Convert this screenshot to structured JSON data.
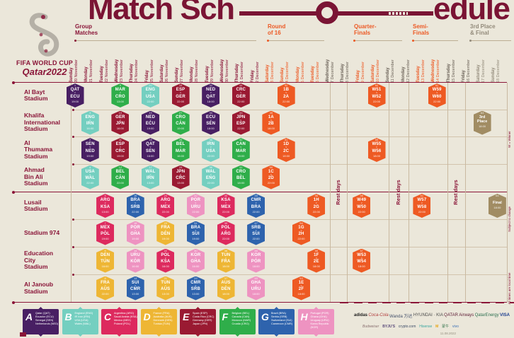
{
  "title": {
    "part1": "Match Sch",
    "part2": "edule"
  },
  "logo": {
    "line1": "FIFA WORLD CUP",
    "line2": "Qatar2022"
  },
  "colors": {
    "background": "#ebe7da",
    "maroon": "#8A1538",
    "title_maroon": "#7a1434",
    "orange": "#ec5a25",
    "taupe": "#a18c63",
    "rest_gray": "#6b6258",
    "final_gray": "#938b7b",
    "line_light": "#d2c3ac",
    "groups": {
      "A": "#481f63",
      "B": "#74cfc0",
      "C": "#dd2a5e",
      "D": "#eeb634",
      "E": "#9a1a32",
      "F": "#2fae4a",
      "G": "#2e63ad",
      "H": "#ee93c1",
      "K": "#ee5a23",
      "T": "#a18c63"
    }
  },
  "sections": [
    {
      "label": "Group\nMatches",
      "phase": "group"
    },
    {
      "label": "Round\nof 16",
      "phase": "knockout"
    },
    {
      "label": "Quarter-\nFinals",
      "phase": "knockout"
    },
    {
      "label": "Semi-\nFinals",
      "phase": "knockout"
    },
    {
      "label": "3rd Place\n& Final",
      "phase": "final"
    }
  ],
  "columns": [
    {
      "day": "Sunday",
      "date": "20 November",
      "phase": "group"
    },
    {
      "day": "Monday",
      "date": "21 November",
      "phase": "group"
    },
    {
      "day": "Tuesday",
      "date": "22 November",
      "phase": "group"
    },
    {
      "day": "Wednesday",
      "date": "23 November",
      "phase": "group"
    },
    {
      "day": "Thursday",
      "date": "24 November",
      "phase": "group"
    },
    {
      "day": "Friday",
      "date": "25 November",
      "phase": "group"
    },
    {
      "day": "Saturday",
      "date": "26 November",
      "phase": "group"
    },
    {
      "day": "Sunday",
      "date": "27 November",
      "phase": "group"
    },
    {
      "day": "Monday",
      "date": "28 November",
      "phase": "group"
    },
    {
      "day": "Tuesday",
      "date": "29 November",
      "phase": "group"
    },
    {
      "day": "Wednesday",
      "date": "30 November",
      "phase": "group"
    },
    {
      "day": "Thursday",
      "date": "1 December",
      "phase": "group"
    },
    {
      "day": "Friday",
      "date": "2 December",
      "phase": "group"
    },
    {
      "day": "Saturday",
      "date": "3 December",
      "phase": "knockout"
    },
    {
      "day": "Sunday",
      "date": "4 December",
      "phase": "knockout"
    },
    {
      "day": "Monday",
      "date": "5 December",
      "phase": "knockout"
    },
    {
      "day": "Tuesday",
      "date": "6 December",
      "phase": "knockout"
    },
    {
      "day": "Wednesday",
      "date": "7 December",
      "phase": "rest"
    },
    {
      "day": "Thursday",
      "date": "8 December",
      "phase": "rest"
    },
    {
      "day": "Friday",
      "date": "9 December",
      "phase": "knockout"
    },
    {
      "day": "Saturday",
      "date": "10 December",
      "phase": "knockout"
    },
    {
      "day": "Sunday",
      "date": "11 December",
      "phase": "rest"
    },
    {
      "day": "Monday",
      "date": "12 December",
      "phase": "rest"
    },
    {
      "day": "Tuesday",
      "date": "13 December",
      "phase": "knockout"
    },
    {
      "day": "Wednesday",
      "date": "14 December",
      "phase": "knockout"
    },
    {
      "day": "Thursday",
      "date": "15 December",
      "phase": "rest"
    },
    {
      "day": "Friday",
      "date": "16 December",
      "phase": "rest"
    },
    {
      "day": "Saturday",
      "date": "17 December",
      "phase": "final"
    },
    {
      "day": "Sunday",
      "date": "18 December",
      "phase": "final"
    }
  ],
  "rows": [
    {
      "stadium": "Al Bayt\nStadium",
      "matches": [
        {
          "c": 0,
          "g": "A",
          "n": "1",
          "a": "QAT",
          "b": "ECU",
          "t": "19:00"
        },
        {
          "c": 3,
          "g": "F",
          "n": "9",
          "a": "MAR",
          "b": "CRO",
          "t": "13:00"
        },
        {
          "c": 5,
          "g": "B",
          "n": "20",
          "a": "ENG",
          "b": "USA",
          "t": "22:00"
        },
        {
          "c": 7,
          "g": "E",
          "n": "28",
          "a": "ESP",
          "b": "GER",
          "t": "22:00"
        },
        {
          "c": 9,
          "g": "A",
          "n": "34",
          "a": "NED",
          "b": "QAT",
          "t": "18:00"
        },
        {
          "c": 11,
          "g": "E",
          "n": "44",
          "a": "CRC",
          "b": "GER",
          "t": "22:00"
        },
        {
          "c": 14,
          "g": "K",
          "n": "52",
          "a": "1B",
          "b": "2A",
          "t": "22:00"
        },
        {
          "c": 20,
          "g": "K",
          "n": "60",
          "a": "W51",
          "b": "W52",
          "t": "22:00"
        },
        {
          "c": 24,
          "g": "K",
          "n": "62",
          "a": "W59",
          "b": "W60",
          "t": "22:00"
        }
      ]
    },
    {
      "stadium": "Khalifa\nInternational\nStadium",
      "matches": [
        {
          "c": 1,
          "g": "B",
          "n": "3",
          "a": "ENG",
          "b": "IRN",
          "t": "16:00"
        },
        {
          "c": 3,
          "g": "E",
          "n": "10",
          "a": "GER",
          "b": "JPN",
          "t": "16:00"
        },
        {
          "c": 5,
          "g": "A",
          "n": "19",
          "a": "NED",
          "b": "ECU",
          "t": "19:00"
        },
        {
          "c": 7,
          "g": "F",
          "n": "27",
          "a": "CRO",
          "b": "CAN",
          "t": "19:00"
        },
        {
          "c": 9,
          "g": "A",
          "n": "33",
          "a": "ECU",
          "b": "SEN",
          "t": "18:00"
        },
        {
          "c": 11,
          "g": "E",
          "n": "43",
          "a": "JPN",
          "b": "ESP",
          "t": "22:00"
        },
        {
          "c": 13,
          "g": "K",
          "n": "49",
          "a": "1A",
          "b": "2B",
          "t": "18:00"
        },
        {
          "c": 27,
          "g": "T",
          "n": "63",
          "lines": [
            "3rd",
            "Place"
          ],
          "t": "18:00"
        }
      ]
    },
    {
      "stadium": "Al\nThumama\nStadium",
      "matches": [
        {
          "c": 1,
          "g": "A",
          "n": "2",
          "a": "SEN",
          "b": "NED",
          "t": "19:00"
        },
        {
          "c": 3,
          "g": "E",
          "n": "11",
          "a": "ESP",
          "b": "CRC",
          "t": "19:00"
        },
        {
          "c": 5,
          "g": "A",
          "n": "18",
          "a": "QAT",
          "b": "SEN",
          "t": "16:00"
        },
        {
          "c": 7,
          "g": "F",
          "n": "26",
          "a": "BEL",
          "b": "MAR",
          "t": "16:00"
        },
        {
          "c": 9,
          "g": "B",
          "n": "35",
          "a": "IRN",
          "b": "USA",
          "t": "22:00"
        },
        {
          "c": 11,
          "g": "F",
          "n": "42",
          "a": "CAN",
          "b": "MAR",
          "t": "18:00"
        },
        {
          "c": 14,
          "g": "K",
          "n": "51",
          "a": "1D",
          "b": "2C",
          "t": "18:00"
        },
        {
          "c": 20,
          "g": "K",
          "n": "59",
          "a": "W55",
          "b": "W56",
          "t": "18:00"
        }
      ]
    },
    {
      "stadium": "Ahmad\nBin Ali\nStadium",
      "matches": [
        {
          "c": 1,
          "g": "B",
          "n": "4",
          "a": "USA",
          "b": "WAL",
          "t": "22:00"
        },
        {
          "c": 3,
          "g": "F",
          "n": "12",
          "a": "BEL",
          "b": "CAN",
          "t": "22:00"
        },
        {
          "c": 5,
          "g": "B",
          "n": "17",
          "a": "WAL",
          "b": "IRN",
          "t": "13:00"
        },
        {
          "c": 7,
          "g": "E",
          "n": "25",
          "a": "JPN",
          "b": "CRC",
          "t": "13:00"
        },
        {
          "c": 9,
          "g": "B",
          "n": "36",
          "a": "WAL",
          "b": "ENG",
          "t": "22:00"
        },
        {
          "c": 11,
          "g": "F",
          "n": "41",
          "a": "CRO",
          "b": "BEL",
          "t": "18:00"
        },
        {
          "c": 13,
          "g": "K",
          "n": "50",
          "a": "1C",
          "b": "2D",
          "t": "22:00"
        }
      ]
    },
    {
      "stadium": "Lusail\nStadium",
      "matches": [
        {
          "c": 2,
          "g": "C",
          "n": "5",
          "a": "ARG",
          "b": "KSA",
          "t": "13:00"
        },
        {
          "c": 4,
          "g": "G",
          "n": "16",
          "a": "BRA",
          "b": "SRB",
          "t": "22:00"
        },
        {
          "c": 6,
          "g": "C",
          "n": "24",
          "a": "ARG",
          "b": "MEX",
          "t": "22:00"
        },
        {
          "c": 8,
          "g": "H",
          "n": "32",
          "a": "POR",
          "b": "URU",
          "t": "22:00"
        },
        {
          "c": 10,
          "g": "C",
          "n": "40",
          "a": "KSA",
          "b": "MEX",
          "t": "22:00"
        },
        {
          "c": 12,
          "g": "G",
          "n": "48",
          "a": "CMR",
          "b": "BRA",
          "t": "22:00"
        },
        {
          "c": 16,
          "g": "K",
          "n": "56",
          "a": "1H",
          "b": "2G",
          "t": "22:00"
        },
        {
          "c": 19,
          "g": "K",
          "n": "58",
          "a": "W49",
          "b": "W50",
          "t": "22:00"
        },
        {
          "c": 23,
          "g": "K",
          "n": "61",
          "a": "W57",
          "b": "W58",
          "t": "22:00"
        },
        {
          "c": 28,
          "g": "T",
          "n": "64",
          "lines": [
            "Final"
          ],
          "t": "18:00"
        }
      ]
    },
    {
      "stadium": "Stadium 974",
      "matches": [
        {
          "c": 2,
          "g": "C",
          "n": "7",
          "a": "MEX",
          "b": "POL",
          "t": "19:00"
        },
        {
          "c": 4,
          "g": "H",
          "n": "15",
          "a": "POR",
          "b": "GHA",
          "t": "19:00"
        },
        {
          "c": 6,
          "g": "D",
          "n": "23",
          "a": "FRA",
          "b": "DEN",
          "t": "19:00"
        },
        {
          "c": 8,
          "g": "G",
          "n": "31",
          "a": "BRA",
          "b": "SUI",
          "t": "19:00"
        },
        {
          "c": 10,
          "g": "C",
          "n": "39",
          "a": "POL",
          "b": "ARG",
          "t": "22:00"
        },
        {
          "c": 12,
          "g": "G",
          "n": "47",
          "a": "SRB",
          "b": "SUI",
          "t": "22:00"
        },
        {
          "c": 15,
          "g": "K",
          "n": "54",
          "a": "1G",
          "b": "2H",
          "t": "22:00"
        }
      ]
    },
    {
      "stadium": "Education\nCity\nStadium",
      "matches": [
        {
          "c": 2,
          "g": "D",
          "n": "6",
          "a": "DEN",
          "b": "TUN",
          "t": "16:00"
        },
        {
          "c": 4,
          "g": "H",
          "n": "14",
          "a": "URU",
          "b": "KOR",
          "t": "16:00"
        },
        {
          "c": 6,
          "g": "C",
          "n": "22",
          "a": "POL",
          "b": "KSA",
          "t": "16:00"
        },
        {
          "c": 8,
          "g": "H",
          "n": "30",
          "a": "KOR",
          "b": "GHA",
          "t": "16:00"
        },
        {
          "c": 10,
          "g": "D",
          "n": "38",
          "a": "TUN",
          "b": "FRA",
          "t": "18:00"
        },
        {
          "c": 12,
          "g": "H",
          "n": "46",
          "a": "KOR",
          "b": "POR",
          "t": "18:00"
        },
        {
          "c": 16,
          "g": "K",
          "n": "55",
          "a": "1F",
          "b": "2E",
          "t": "18:00"
        },
        {
          "c": 19,
          "g": "K",
          "n": "57",
          "a": "W53",
          "b": "W54",
          "t": "18:00"
        }
      ]
    },
    {
      "stadium": "Al Janoub\nStadium",
      "matches": [
        {
          "c": 2,
          "g": "D",
          "n": "8",
          "a": "FRA",
          "b": "AUS",
          "t": "22:00"
        },
        {
          "c": 4,
          "g": "G",
          "n": "13",
          "a": "SUI",
          "b": "CMR",
          "t": "13:00"
        },
        {
          "c": 6,
          "g": "D",
          "n": "21",
          "a": "TUN",
          "b": "AUS",
          "t": "13:00"
        },
        {
          "c": 8,
          "g": "G",
          "n": "29",
          "a": "CMR",
          "b": "SRB",
          "t": "13:00"
        },
        {
          "c": 10,
          "g": "D",
          "n": "37",
          "a": "AUS",
          "b": "DEN",
          "t": "18:00"
        },
        {
          "c": 12,
          "g": "H",
          "n": "45",
          "a": "GHA",
          "b": "URU",
          "t": "18:00"
        },
        {
          "c": 15,
          "g": "K",
          "n": "53",
          "a": "1E",
          "b": "2F",
          "t": "18:00"
        }
      ]
    }
  ],
  "rest_days": [
    "Rest days",
    "Rest days",
    "Rest days"
  ],
  "side_notes": [
    "W = Winner",
    "Subject to change",
    "All times are local time"
  ],
  "legend": [
    {
      "letter": "A",
      "group": "A",
      "teams": [
        "Qatar (QAT)",
        "Ecuador (ECU)",
        "Senegal (SEN)",
        "Netherlands (NED)"
      ]
    },
    {
      "letter": "B",
      "group": "B",
      "teams": [
        "England (ENG)",
        "IR Iran (IRN)",
        "USA (USA)",
        "Wales (WAL)"
      ]
    },
    {
      "letter": "C",
      "group": "C",
      "teams": [
        "Argentina (ARG)",
        "Saudi Arabia (KSA)",
        "Mexico (MEX)",
        "Poland (POL)"
      ]
    },
    {
      "letter": "D",
      "group": "D",
      "teams": [
        "France (FRA)",
        "Australia (AUS)",
        "Denmark (DEN)",
        "Tunisia (TUN)"
      ]
    },
    {
      "letter": "E",
      "group": "E",
      "teams": [
        "Spain (ESP)",
        "Costa Rica (CRC)",
        "Germany (GER)",
        "Japan (JPN)"
      ]
    },
    {
      "letter": "F",
      "group": "F",
      "teams": [
        "Belgium (BEL)",
        "Canada (CAN)",
        "Morocco (MAR)",
        "Croatia (CRO)"
      ]
    },
    {
      "letter": "G",
      "group": "G",
      "teams": [
        "Brazil (BRA)",
        "Serbia (SRB)",
        "Switzerland (SUI)",
        "Cameroon (CMR)"
      ]
    },
    {
      "letter": "H",
      "group": "H",
      "teams": [
        "Portugal (POR)",
        "Ghana (GHA)",
        "Uruguay (URU)",
        "Korea Republic (KOR)"
      ]
    }
  ],
  "sponsors": {
    "row1": [
      {
        "label": "adidas",
        "color": "#1a1a1a",
        "bold": true
      },
      {
        "label": "Coca-Cola",
        "color": "#b03a3a",
        "italic": true
      },
      {
        "label": "Wanda 万达",
        "color": "#44506b"
      },
      {
        "label": "HYUNDAI · KIA",
        "color": "#4a4a4a"
      },
      {
        "label": "QATAR Airways",
        "color": "#5c1a33"
      },
      {
        "label": "QatarEnergy",
        "color": "#2a6f4e"
      },
      {
        "label": "VISA",
        "color": "#1a3c8f",
        "bold": true
      }
    ],
    "row2": [
      {
        "label": "Budweiser",
        "color": "#8a7070",
        "italic": true
      },
      {
        "label": "BYJU'S",
        "color": "#5a4a7a",
        "bold": true
      },
      {
        "label": "crypto.com",
        "color": "#3a4a66"
      },
      {
        "label": "Hisense",
        "color": "#3aa6a0"
      },
      {
        "label": "M",
        "color": "#e7a614",
        "bold": true
      },
      {
        "label": "蒙牛",
        "color": "#3d7a52"
      },
      {
        "label": "vivo",
        "color": "#3b6fb5"
      }
    ]
  },
  "footnote": "11.08.2022"
}
